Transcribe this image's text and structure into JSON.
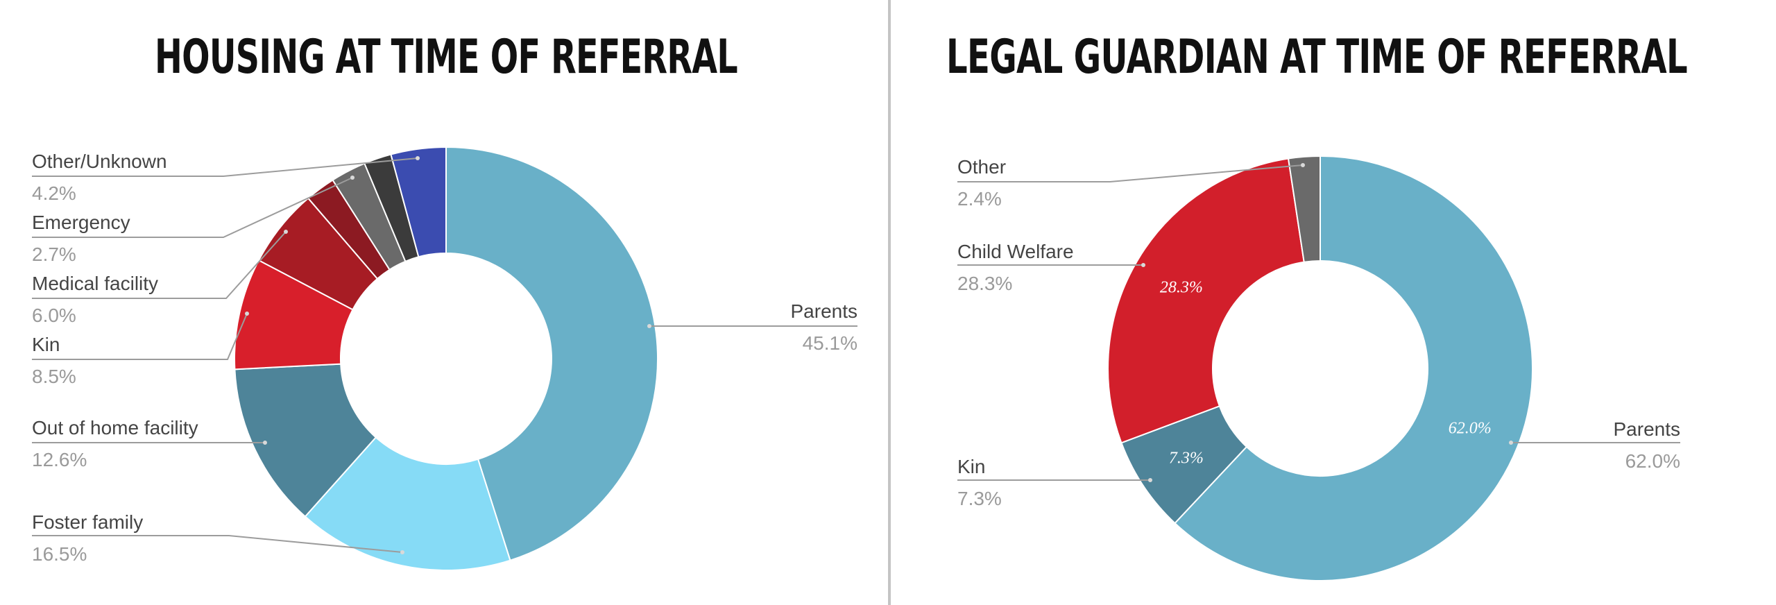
{
  "chart_data": [
    {
      "type": "pie",
      "title": "HOUSING AT TIME OF REFERRAL",
      "donut": true,
      "categories": [
        "Parents",
        "Foster family",
        "Out of home facility",
        "Kin",
        "Medical facility",
        "Emergency",
        "Other/Unknown"
      ],
      "values": [
        45.1,
        16.5,
        12.6,
        8.5,
        6.0,
        2.7,
        4.2
      ],
      "value_labels": [
        "45.1%",
        "16.5%",
        "12.6%",
        "8.5%",
        "6.0%",
        "2.7%",
        "4.2%"
      ],
      "unit": "%",
      "legend": "outside labels with leader lines",
      "colors": [
        "#69b0c8",
        "#86dbf6",
        "#4e8499",
        "#d81f2b",
        "#a71c24",
        "#8c1a22",
        "#6a6a6a",
        "#3b3b3b",
        "#3b4cb0"
      ],
      "unlabeled_slices": [
        {
          "value": 2.3,
          "color": "#8c1a22"
        },
        {
          "value": 2.1,
          "color": "#6a6a6a"
        }
      ]
    },
    {
      "type": "pie",
      "title": "LEGAL GUARDIAN AT TIME OF REFERRAL",
      "donut": true,
      "categories": [
        "Parents",
        "Kin",
        "Child Welfare",
        "Other"
      ],
      "values": [
        62.0,
        7.3,
        28.3,
        2.4
      ],
      "value_labels": [
        "62.0%",
        "7.3%",
        "28.3%",
        "2.4%"
      ],
      "inner_labels": [
        "62.0%",
        "7.3%",
        "28.3%",
        ""
      ],
      "unit": "%",
      "legend": "outside labels with leader lines",
      "colors": [
        "#69b0c8",
        "#4e8499",
        "#d21f2b",
        "#6a6a6a"
      ]
    }
  ]
}
